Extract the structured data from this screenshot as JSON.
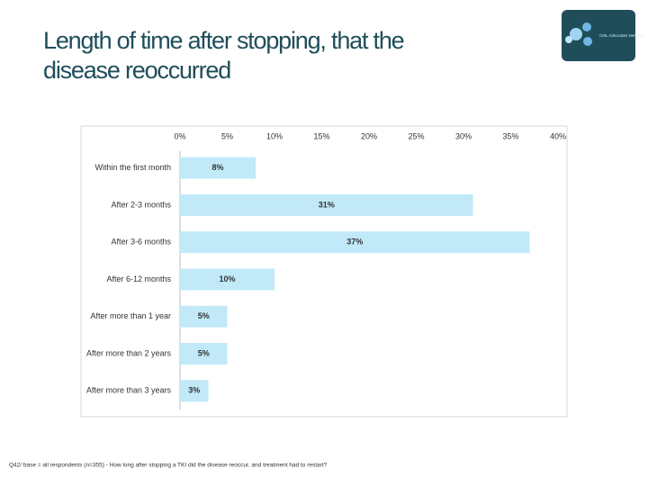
{
  "logo": "CML Advocates Network",
  "footnote": "Q42/ base = all respondents (n=355) - How long after stopping a TKI did the disease reoccur, and treatment had to restart?",
  "chart_data": {
    "type": "bar",
    "orientation": "horizontal",
    "title": [
      "Length of time after stopping, that the",
      "disease reoccurred"
    ],
    "categories": [
      "Within the first month",
      "After 2-3 months",
      "After 3-6 months",
      "After 6-12 months",
      "After more than 1 year",
      "After more than 2 years",
      "After more than 3 years"
    ],
    "values": [
      8,
      31,
      37,
      10,
      5,
      5,
      3
    ],
    "value_labels": [
      "8%",
      "31%",
      "37%",
      "10%",
      "5%",
      "5%",
      "3%"
    ],
    "color": "#c1e9f8",
    "xlim": [
      0,
      40
    ],
    "xticks": [
      {
        "value": 0,
        "label": "0%"
      },
      {
        "value": 5,
        "label": "5%"
      },
      {
        "value": 10,
        "label": "10%"
      },
      {
        "value": 15,
        "label": "15%"
      },
      {
        "value": 20,
        "label": "20%"
      },
      {
        "value": 25,
        "label": "25%"
      },
      {
        "value": 30,
        "label": "30%"
      },
      {
        "value": 35,
        "label": "35%"
      },
      {
        "value": 40,
        "label": "40%"
      }
    ]
  }
}
